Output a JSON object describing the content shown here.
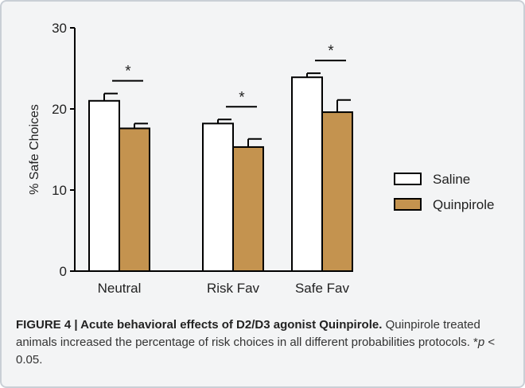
{
  "colors": {
    "saline": "#ffffff",
    "quinpirole": "#c4934f",
    "axis": "#000000",
    "frame_bg": "#f3f4f5",
    "frame_border": "#c9cfd6"
  },
  "chart_data": {
    "type": "bar",
    "ylabel": "% Safe Choices",
    "ylim": [
      0,
      30
    ],
    "yticks": [
      0,
      10,
      20,
      30
    ],
    "categories": [
      "Neutral",
      "Risk Fav",
      "Safe Fav"
    ],
    "series": [
      {
        "name": "Saline",
        "values": [
          21.0,
          18.2,
          23.9
        ],
        "errors": [
          0.9,
          0.5,
          0.5
        ]
      },
      {
        "name": "Quinpirole",
        "values": [
          17.6,
          15.3,
          19.6
        ],
        "errors": [
          0.6,
          1.0,
          1.5
        ]
      }
    ],
    "significance": [
      "*",
      "*",
      "*"
    ],
    "legend": [
      "Saline",
      "Quinpirole"
    ],
    "legend_position": "right",
    "grid": false
  },
  "caption": {
    "title": "FIGURE 4 | Acute behavioral effects of D2/D3 agonist Quinpirole.",
    "body": "Quinpirole treated animals increased the percentage of risk choices in all different probabilities protocols.",
    "note_star": "*",
    "note_p": "p",
    "note_rest": " < 0.05."
  }
}
